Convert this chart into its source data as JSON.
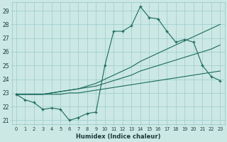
{
  "xlabel": "Humidex (Indice chaleur)",
  "bg_color": "#cce8e4",
  "grid_color": "#99cccc",
  "line_color": "#1a6b5a",
  "x_values": [
    0,
    1,
    2,
    3,
    4,
    5,
    6,
    7,
    8,
    9,
    10,
    11,
    12,
    13,
    14,
    15,
    16,
    17,
    18,
    19,
    20,
    21,
    22,
    23
  ],
  "line1_y": [
    22.9,
    22.5,
    22.3,
    21.8,
    21.9,
    21.8,
    21.0,
    21.2,
    21.5,
    21.6,
    25.0,
    27.5,
    27.5,
    27.9,
    29.3,
    28.5,
    28.4,
    27.5,
    26.7,
    26.9,
    26.7,
    25.0,
    24.2,
    23.9
  ],
  "line2_y": [
    22.9,
    22.9,
    22.9,
    22.9,
    23.0,
    23.1,
    23.2,
    23.3,
    23.5,
    23.7,
    24.0,
    24.3,
    24.6,
    24.9,
    25.3,
    25.6,
    25.9,
    26.2,
    26.5,
    26.8,
    27.1,
    27.4,
    27.7,
    28.0
  ],
  "line3_y": [
    22.9,
    22.9,
    22.9,
    22.9,
    23.0,
    23.1,
    23.2,
    23.3,
    23.4,
    23.5,
    23.7,
    23.9,
    24.1,
    24.3,
    24.6,
    24.8,
    25.0,
    25.2,
    25.4,
    25.6,
    25.8,
    26.0,
    26.2,
    26.5
  ],
  "line4_y": [
    22.9,
    22.9,
    22.9,
    22.9,
    22.9,
    22.9,
    23.0,
    23.0,
    23.1,
    23.2,
    23.3,
    23.4,
    23.5,
    23.6,
    23.7,
    23.8,
    23.9,
    24.0,
    24.1,
    24.2,
    24.3,
    24.4,
    24.5,
    24.6
  ],
  "ylim": [
    20.7,
    29.6
  ],
  "yticks": [
    21,
    22,
    23,
    24,
    25,
    26,
    27,
    28,
    29
  ],
  "xticks": [
    0,
    1,
    2,
    3,
    4,
    5,
    6,
    7,
    8,
    9,
    10,
    11,
    12,
    13,
    14,
    15,
    16,
    17,
    18,
    19,
    20,
    21,
    22,
    23
  ]
}
